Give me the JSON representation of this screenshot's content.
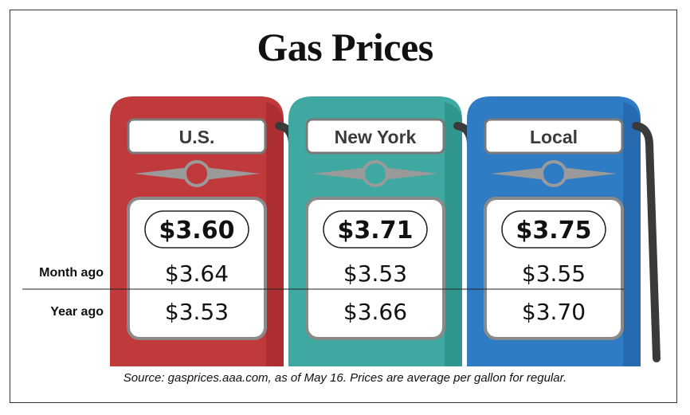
{
  "title": "Gas Prices",
  "source": "Source: gasprices.aaa.com, as of May 16. Prices are average per gallon for regular.",
  "row_labels": [
    "Month ago",
    "Year ago"
  ],
  "chart_data": {
    "type": "table",
    "title": "Gas Prices",
    "columns": [
      "U.S.",
      "New York",
      "Local"
    ],
    "rows": [
      {
        "label": "",
        "values": [
          "$3.60",
          "$3.71",
          "$3.75"
        ]
      },
      {
        "label": "Month ago",
        "values": [
          "$3.64",
          "$3.53",
          "$3.55"
        ]
      },
      {
        "label": "Year ago",
        "values": [
          "$3.53",
          "$3.66",
          "$3.70"
        ]
      }
    ],
    "pump_colors": [
      "#c0393b",
      "#3fa8a0",
      "#2f7cc4"
    ]
  }
}
